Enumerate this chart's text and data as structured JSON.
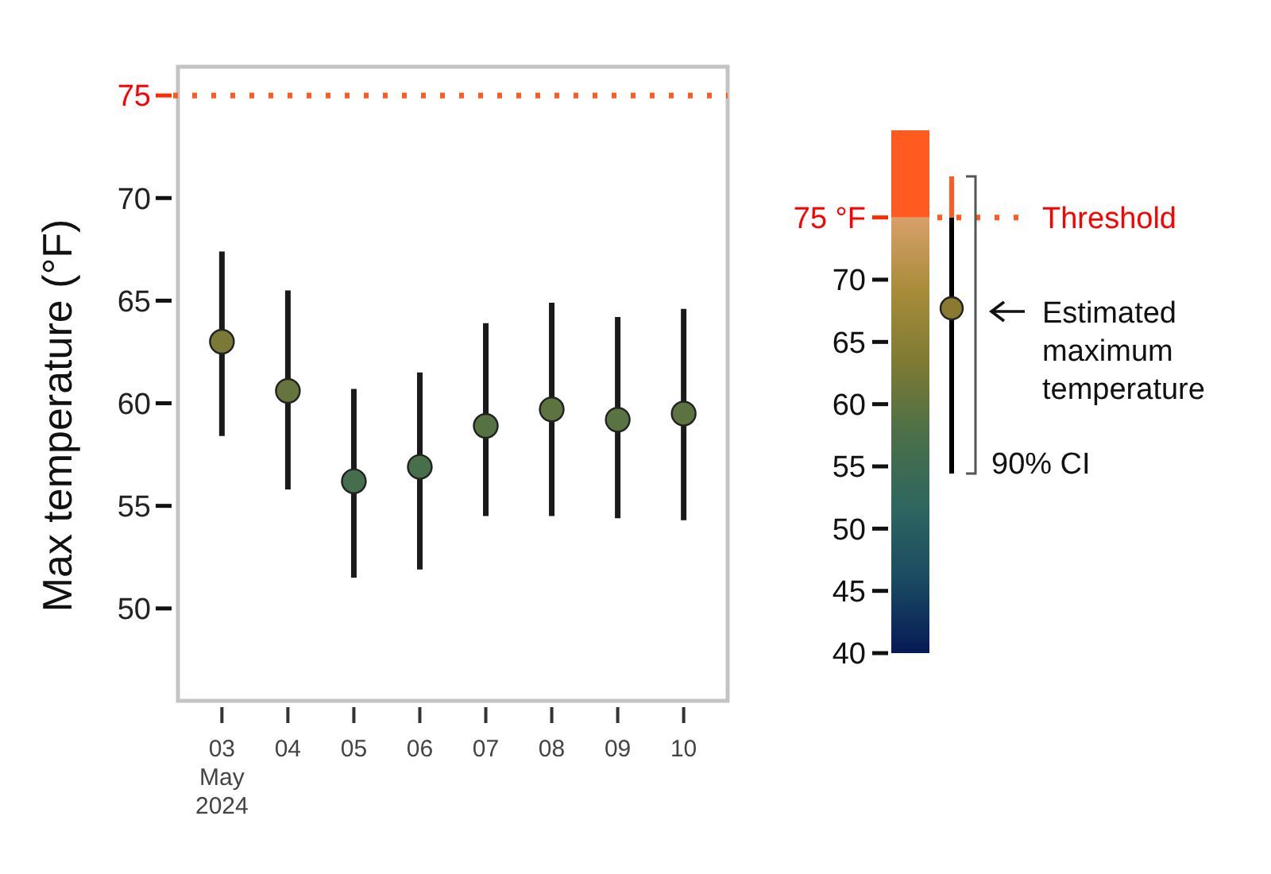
{
  "chart_data": {
    "type": "scatter",
    "ylabel": "Max temperature (°F)",
    "x": [
      "2024-05-03",
      "2024-05-04",
      "2024-05-05",
      "2024-05-06",
      "2024-05-07",
      "2024-05-08",
      "2024-05-09",
      "2024-05-10"
    ],
    "xlim": [
      "2024-05-02T08:00",
      "2024-05-10T16:00"
    ],
    "xticks": [
      {
        "value": "2024-05-03",
        "label": "03\nMay\n2024"
      },
      {
        "value": "2024-05-04",
        "label": "04"
      },
      {
        "value": "2024-05-05",
        "label": "05"
      },
      {
        "value": "2024-05-06",
        "label": "06"
      },
      {
        "value": "2024-05-07",
        "label": "07"
      },
      {
        "value": "2024-05-08",
        "label": "08"
      },
      {
        "value": "2024-05-09",
        "label": "09"
      },
      {
        "value": "2024-05-10",
        "label": "10"
      }
    ],
    "values": [
      63.0,
      60.6,
      56.2,
      56.9,
      58.9,
      59.7,
      59.2,
      59.5
    ],
    "errors": [
      [
        58.4,
        67.4
      ],
      [
        55.8,
        65.5
      ],
      [
        51.5,
        60.7
      ],
      [
        51.9,
        61.5
      ],
      [
        54.5,
        63.9
      ],
      [
        54.5,
        64.9
      ],
      [
        54.4,
        64.2
      ],
      [
        54.3,
        64.6
      ]
    ],
    "cvalues": [
      63.0,
      60.6,
      56.2,
      56.9,
      58.9,
      59.7,
      59.2,
      59.5
    ],
    "clim": [
      40,
      82
    ],
    "cticks": [
      40,
      45,
      50,
      55,
      60,
      65,
      70,
      {
        "value": 75,
        "label": "75 °F"
      }
    ],
    "ylim": [
      45.5,
      76.4
    ],
    "yticks": [
      50,
      55,
      60,
      65,
      70,
      75
    ],
    "marker": "circle",
    "grid": false,
    "legend": "right",
    "ref_lines": [
      {
        "axis": "y",
        "value": 75,
        "label": "Threshold",
        "color": "#ff5a1f",
        "line_style": "dotted"
      }
    ],
    "annotations": [
      "Estimated maximum temperature",
      "90% CI"
    ]
  }
}
